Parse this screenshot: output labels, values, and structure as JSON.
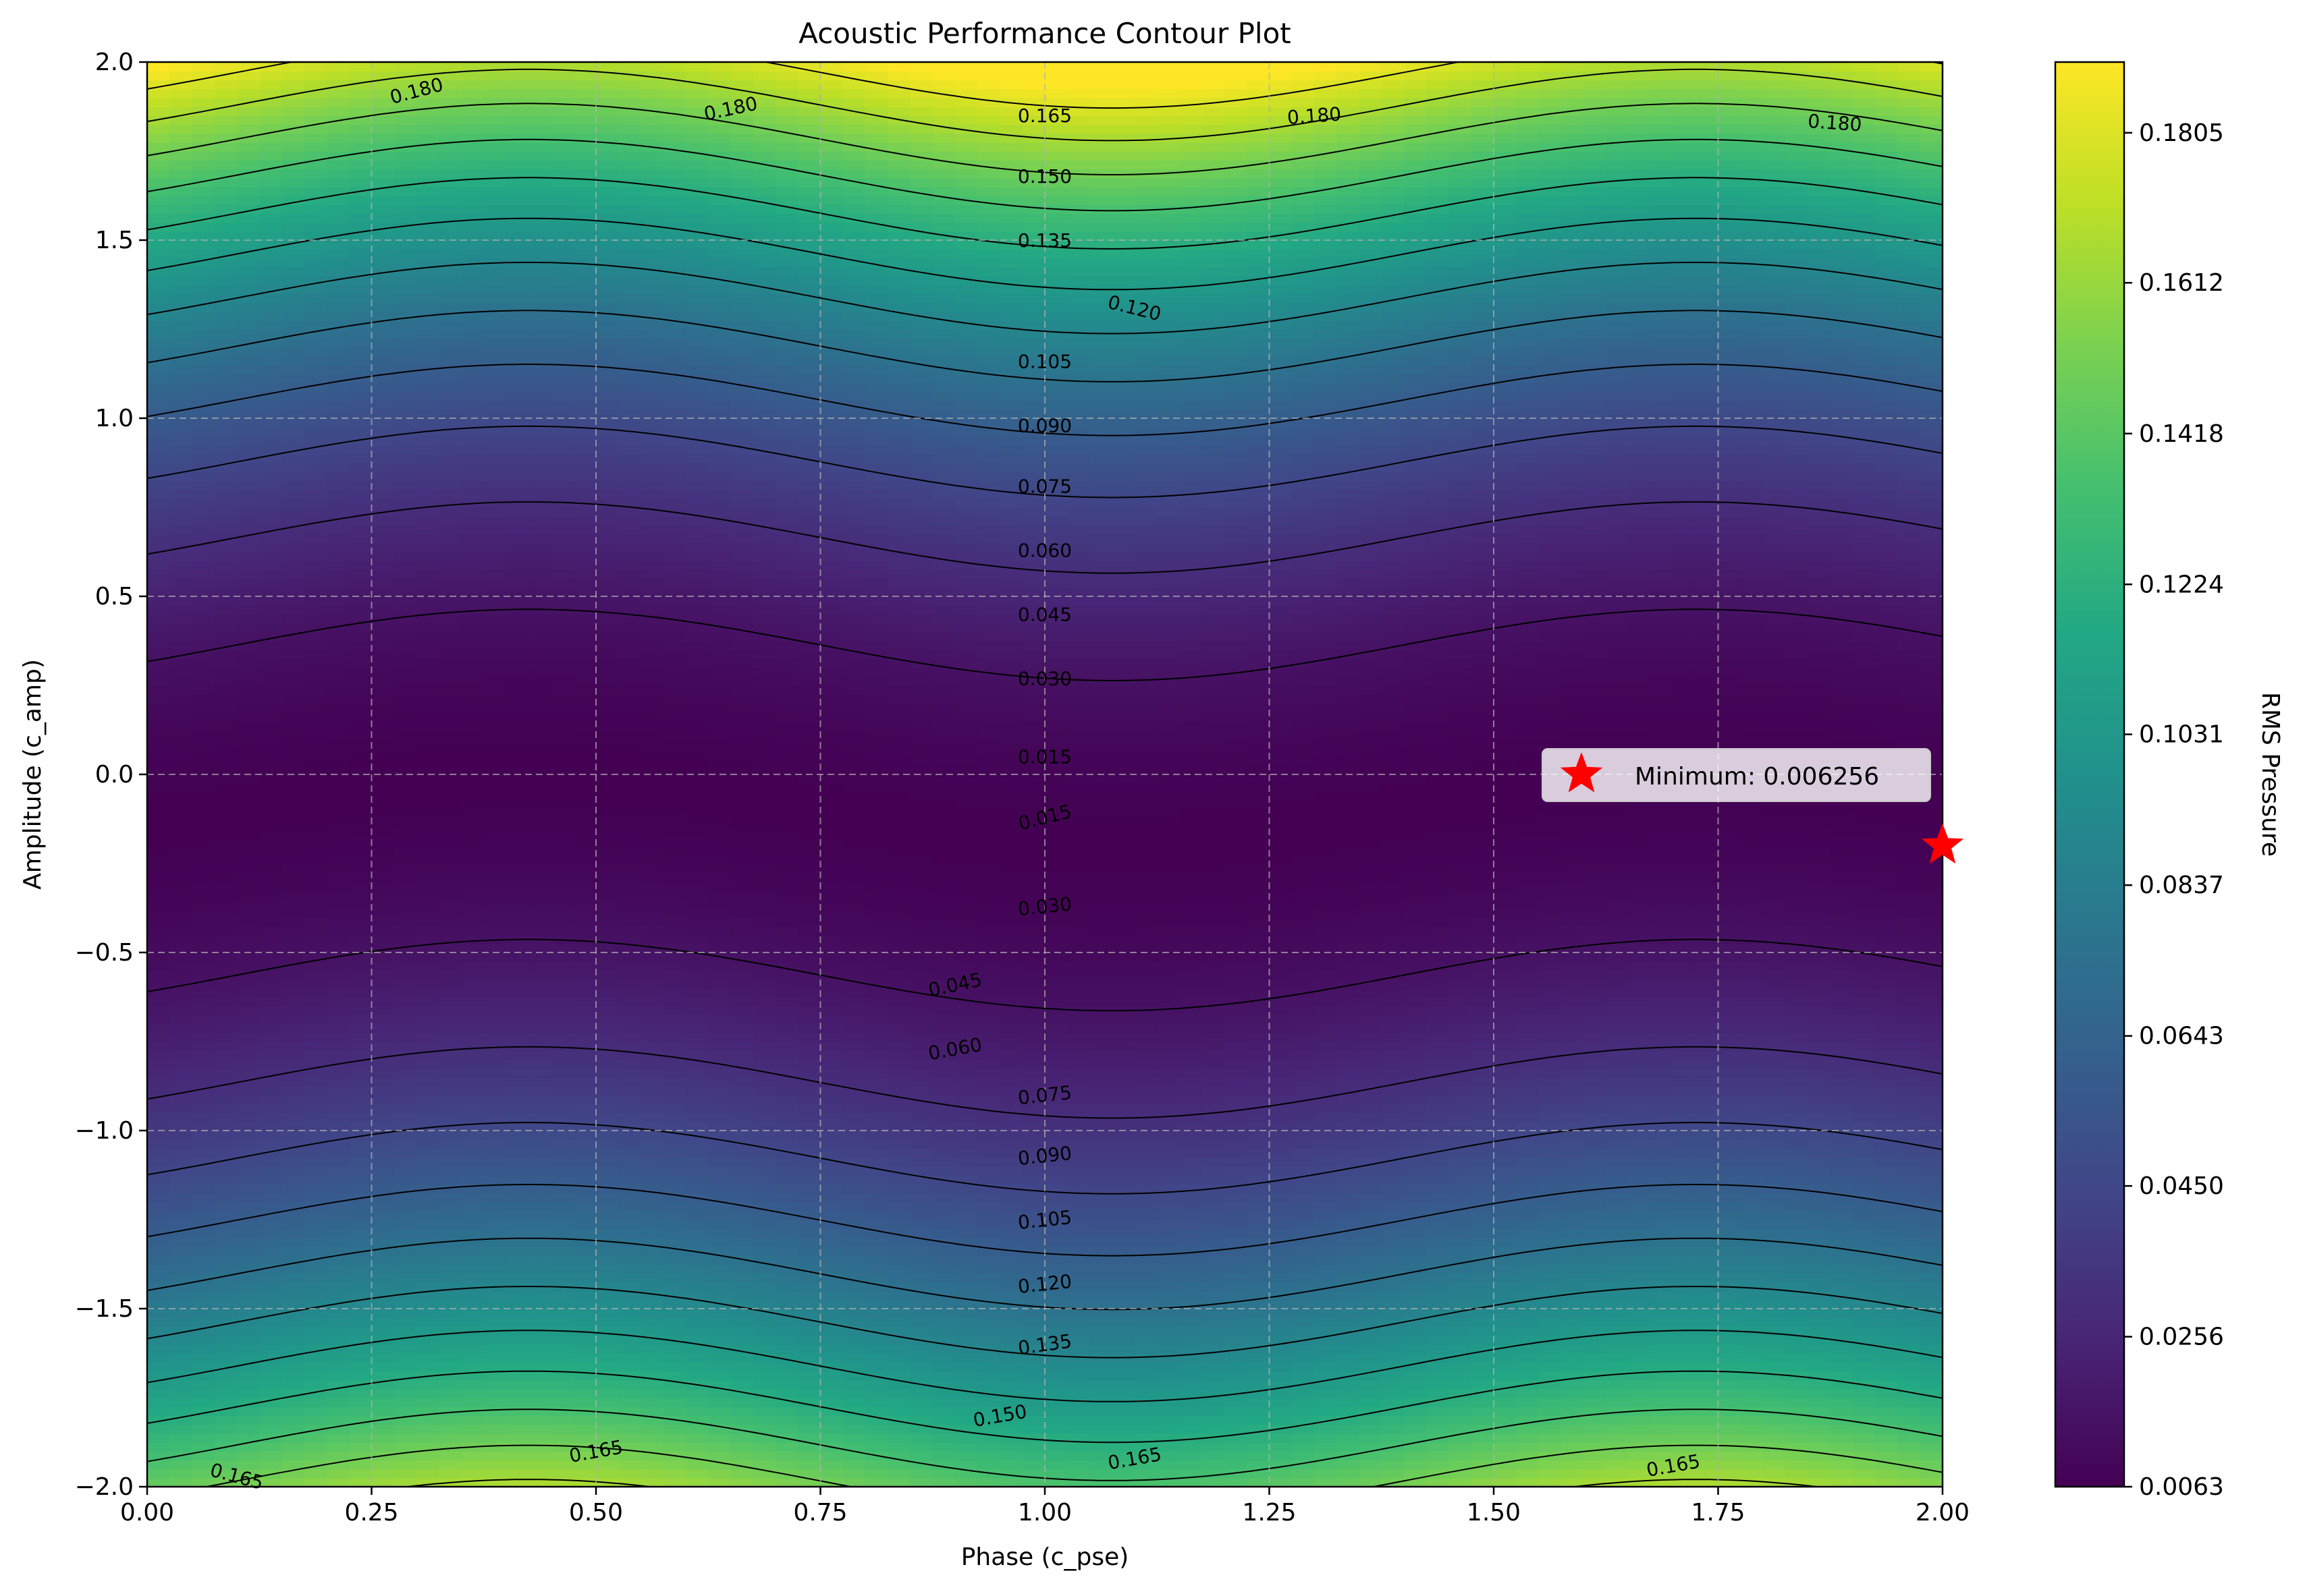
{
  "chart_data": {
    "type": "contour",
    "title": "Acoustic Performance Contour Plot",
    "xlabel": "Phase (c_pse)",
    "ylabel": "Amplitude (c_amp)",
    "xlim": [
      0,
      2
    ],
    "ylim": [
      -2,
      2
    ],
    "x_ticks": [
      "0.00",
      "0.25",
      "0.50",
      "0.75",
      "1.00",
      "1.25",
      "1.50",
      "1.75",
      "2.00"
    ],
    "y_ticks": [
      "−2.0",
      "−1.5",
      "−1.0",
      "−0.5",
      "0.0",
      "0.5",
      "1.0",
      "1.5",
      "2.0"
    ],
    "grid": true,
    "colormap": "viridis",
    "colorbar": {
      "label": "RMS Pressure",
      "min": 0.0063,
      "max": 0.1896,
      "ticks": [
        "0.0063",
        "0.0256",
        "0.0450",
        "0.0643",
        "0.0837",
        "0.1031",
        "0.1224",
        "0.1418",
        "0.1612",
        "0.1805"
      ]
    },
    "contour_levels": [
      0.015,
      0.03,
      0.045,
      0.06,
      0.075,
      0.09,
      0.105,
      0.12,
      0.135,
      0.15,
      0.165,
      0.18
    ],
    "contour_labels": [
      {
        "text": "0.180",
        "x": 0.3,
        "y": 1.92,
        "angle": -15
      },
      {
        "text": "0.180",
        "x": 0.65,
        "y": 1.87,
        "angle": -12
      },
      {
        "text": "0.180",
        "x": 1.3,
        "y": 1.85,
        "angle": -4
      },
      {
        "text": "0.180",
        "x": 1.88,
        "y": 1.83,
        "angle": 4
      },
      {
        "text": "0.165",
        "x": 1.0,
        "y": 1.85,
        "angle": 0
      },
      {
        "text": "0.150",
        "x": 1.0,
        "y": 1.68,
        "angle": 0
      },
      {
        "text": "0.135",
        "x": 1.0,
        "y": 1.5,
        "angle": 0
      },
      {
        "text": "0.120",
        "x": 1.1,
        "y": 1.31,
        "angle": 14
      },
      {
        "text": "0.105",
        "x": 1.0,
        "y": 1.16,
        "angle": 0
      },
      {
        "text": "0.090",
        "x": 1.0,
        "y": 0.98,
        "angle": 0
      },
      {
        "text": "0.075",
        "x": 1.0,
        "y": 0.81,
        "angle": 0
      },
      {
        "text": "0.060",
        "x": 1.0,
        "y": 0.63,
        "angle": 0
      },
      {
        "text": "0.045",
        "x": 1.0,
        "y": 0.45,
        "angle": 0
      },
      {
        "text": "0.030",
        "x": 1.0,
        "y": 0.27,
        "angle": 0
      },
      {
        "text": "0.015",
        "x": 1.0,
        "y": 0.05,
        "angle": 0
      },
      {
        "text": "0.015",
        "x": 1.0,
        "y": -0.12,
        "angle": -14
      },
      {
        "text": "0.030",
        "x": 1.0,
        "y": -0.37,
        "angle": -6
      },
      {
        "text": "0.045",
        "x": 0.9,
        "y": -0.59,
        "angle": -12
      },
      {
        "text": "0.060",
        "x": 0.9,
        "y": -0.77,
        "angle": -10
      },
      {
        "text": "0.075",
        "x": 1.0,
        "y": -0.9,
        "angle": -6
      },
      {
        "text": "0.090",
        "x": 1.0,
        "y": -1.07,
        "angle": -6
      },
      {
        "text": "0.105",
        "x": 1.0,
        "y": -1.25,
        "angle": -6
      },
      {
        "text": "0.120",
        "x": 1.0,
        "y": -1.43,
        "angle": -6
      },
      {
        "text": "0.135",
        "x": 1.0,
        "y": -1.6,
        "angle": -8
      },
      {
        "text": "0.150",
        "x": 0.95,
        "y": -1.8,
        "angle": -10
      },
      {
        "text": "0.165",
        "x": 0.1,
        "y": -1.97,
        "angle": 15
      },
      {
        "text": "0.165",
        "x": 0.5,
        "y": -1.9,
        "angle": -10
      },
      {
        "text": "0.165",
        "x": 1.1,
        "y": -1.92,
        "angle": -10
      },
      {
        "text": "0.165",
        "x": 1.7,
        "y": -1.94,
        "angle": -10
      }
    ],
    "minimum_point": {
      "x": 2.0,
      "y": -0.2,
      "value": 0.006256
    },
    "legend": {
      "label": "Minimum: 0.006256",
      "placement": "center-right"
    }
  }
}
